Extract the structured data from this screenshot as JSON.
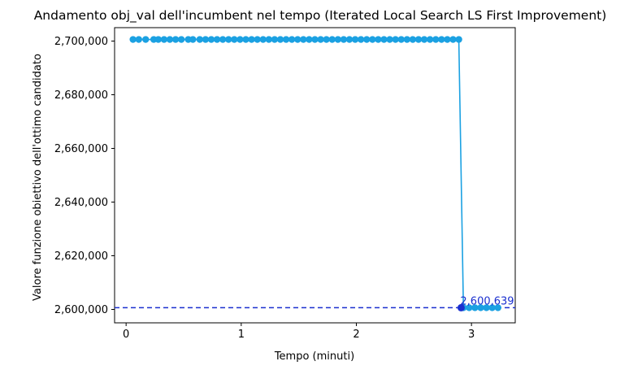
{
  "chart_data": {
    "type": "line",
    "title": "Andamento obj_val dell'incumbent nel tempo (Iterated Local Search LS First Improvement)",
    "xlabel": "Tempo (minuti)",
    "ylabel": "Valore funzione obiettivo dell'ottimo candidato",
    "xlim": [
      -0.1,
      3.38
    ],
    "ylim": [
      2595000,
      2705000
    ],
    "xticks": [
      0,
      1,
      2,
      3
    ],
    "xtick_labels": [
      "0",
      "1",
      "2",
      "3"
    ],
    "yticks": [
      2600000,
      2620000,
      2640000,
      2660000,
      2680000,
      2700000
    ],
    "ytick_labels": [
      "2,600,000",
      "2,620,000",
      "2,640,000",
      "2,660,000",
      "2,680,000",
      "2,700,000"
    ],
    "grid": false,
    "colors": {
      "line": "#1ba1e2",
      "best": "#1a2fcf",
      "hline": "#1a2fcf"
    },
    "series": [
      {
        "x": [
          0.06,
          0.11,
          0.17,
          0.24,
          0.28,
          0.33,
          0.38,
          0.43,
          0.48,
          0.54,
          0.58,
          0.64,
          0.69,
          0.74,
          0.79,
          0.84,
          0.89,
          0.94,
          0.99,
          1.04,
          1.09,
          1.14,
          1.19,
          1.24,
          1.29,
          1.34,
          1.39,
          1.44,
          1.49,
          1.54,
          1.59,
          1.64,
          1.69,
          1.74,
          1.79,
          1.84,
          1.89,
          1.94,
          1.99,
          2.04,
          2.09,
          2.14,
          2.19,
          2.24,
          2.29,
          2.34,
          2.39,
          2.44,
          2.49,
          2.54,
          2.59,
          2.64,
          2.69,
          2.74,
          2.79,
          2.84,
          2.89,
          2.93,
          2.98,
          3.03,
          3.08,
          3.13,
          3.18,
          3.23
        ],
        "y": [
          2700600,
          2700600,
          2700600,
          2700600,
          2700600,
          2700600,
          2700600,
          2700600,
          2700600,
          2700600,
          2700600,
          2700600,
          2700600,
          2700600,
          2700600,
          2700600,
          2700600,
          2700600,
          2700600,
          2700600,
          2700600,
          2700600,
          2700600,
          2700600,
          2700600,
          2700600,
          2700600,
          2700600,
          2700600,
          2700600,
          2700600,
          2700600,
          2700600,
          2700600,
          2700600,
          2700600,
          2700600,
          2700600,
          2700600,
          2700600,
          2700600,
          2700600,
          2700600,
          2700600,
          2700600,
          2700600,
          2700600,
          2700600,
          2700600,
          2700600,
          2700600,
          2700600,
          2700600,
          2700600,
          2700600,
          2700600,
          2700600,
          2600639,
          2600639,
          2600639,
          2600639,
          2600639,
          2600639,
          2600639
        ]
      }
    ],
    "best": {
      "x": 2.91,
      "y": 2600639,
      "label": "2,600,639"
    },
    "hline_y": 2600639
  }
}
